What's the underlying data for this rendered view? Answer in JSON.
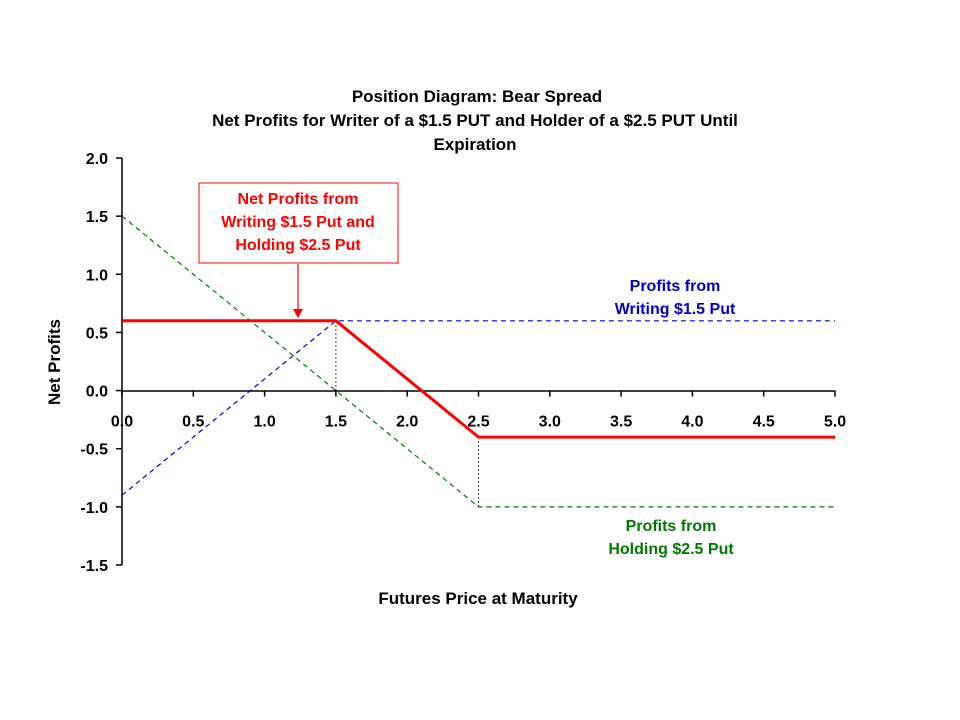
{
  "chart_data": {
    "type": "line",
    "title_lines": [
      "Position Diagram:  Bear Spread",
      "Net Profits for Writer of a $1.5 PUT and Holder of a $2.5 PUT Until",
      "Expiration"
    ],
    "xlabel": "Futures Price at Maturity",
    "ylabel": "Net Profits",
    "xlim": [
      0,
      5
    ],
    "ylim": [
      -1.5,
      2
    ],
    "x_ticks": [
      "0.0",
      "0.5",
      "1.0",
      "1.5",
      "2.0",
      "2.5",
      "3.0",
      "3.5",
      "4.0",
      "4.5",
      "5.0"
    ],
    "y_ticks": [
      "2.0",
      "1.5",
      "1.0",
      "0.5",
      "0.0",
      "-0.5",
      "-1.0",
      "-1.5"
    ],
    "grid": false,
    "series": [
      {
        "name": "Net Profits from Writing $1.5 Put and Holding $2.5 Put",
        "color": "#ff0000",
        "style": "solid",
        "x": [
          0,
          1.5,
          2.5,
          5
        ],
        "y": [
          0.6,
          0.6,
          -0.4,
          -0.4
        ]
      },
      {
        "name": "Profits from Writing $1.5 Put",
        "color": "#0000cc",
        "style": "dashed",
        "x": [
          0,
          1.5,
          5
        ],
        "y": [
          -0.9,
          0.6,
          0.6
        ]
      },
      {
        "name": "Profits from Holding $2.5 Put",
        "color": "#007700",
        "style": "dashed",
        "x": [
          0,
          2.5,
          5
        ],
        "y": [
          1.5,
          -1.0,
          -1.0
        ]
      }
    ],
    "reference_lines": [
      {
        "x": 1.5,
        "y_from": 0,
        "y_to": 0.6
      },
      {
        "x": 2.5,
        "y_from": -0.4,
        "y_to": -1.0
      }
    ],
    "annotations": [
      {
        "lines": [
          "Net Profits from",
          "Writing $1.5 Put and",
          "Holding $2.5 Put"
        ],
        "color": "#ff0000",
        "boxed": true,
        "arrow_to": {
          "x": 1.25,
          "y": 0.6
        }
      },
      {
        "lines": [
          "Profits from",
          "Writing $1.5 Put"
        ],
        "color": "#0000cc",
        "boxed": false
      },
      {
        "lines": [
          "Profits from",
          "Holding $2.5 Put"
        ],
        "color": "#007700",
        "boxed": false
      }
    ]
  }
}
